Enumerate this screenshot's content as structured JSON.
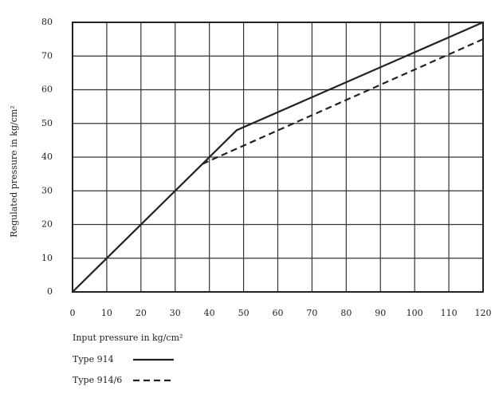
{
  "chart_data": {
    "type": "line",
    "x_label": "Input pressure in kg/cm²",
    "y_label": "Regulated pressure in kg/cm²",
    "xlim": [
      0,
      120
    ],
    "ylim": [
      0,
      80
    ],
    "xticks": [
      0,
      10,
      20,
      30,
      40,
      50,
      60,
      70,
      80,
      90,
      100,
      110,
      120
    ],
    "yticks": [
      0,
      10,
      20,
      30,
      40,
      50,
      60,
      70,
      80
    ],
    "grid": true,
    "series": [
      {
        "name": "Type 914",
        "color": "#222222",
        "dash": "solid",
        "x": [
          0,
          40,
          48,
          120
        ],
        "values": [
          0,
          40,
          48,
          80
        ]
      },
      {
        "name": "Type 914/6",
        "color": "#222222",
        "dash": "dashed",
        "x": [
          38,
          120
        ],
        "values": [
          38,
          75
        ]
      }
    ]
  }
}
